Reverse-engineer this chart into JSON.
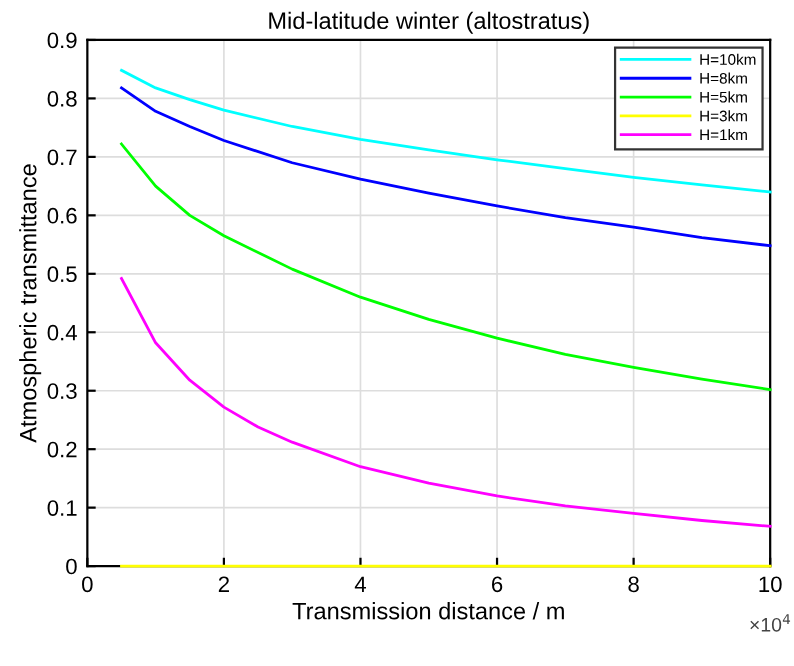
{
  "chart_data": {
    "type": "line",
    "title": "Mid-latitude winter (altostratus)",
    "xlabel": "Transmission distance / m",
    "ylabel": "Atmospheric transmittance",
    "annotations": [
      "×10$^{4}$"
    ],
    "x": [
      0.5,
      1,
      1.5,
      2,
      3,
      4,
      5,
      6,
      7,
      8,
      9,
      10
    ],
    "series": [
      {
        "name": "H=10km",
        "color": "#00ffff",
        "values": [
          0.848,
          0.818,
          0.798,
          0.78,
          0.752,
          0.73,
          0.712,
          0.695,
          0.68,
          0.665,
          0.652,
          0.64
        ]
      },
      {
        "name": "H=8km",
        "color": "#0000ff",
        "values": [
          0.818,
          0.778,
          0.752,
          0.728,
          0.69,
          0.662,
          0.638,
          0.616,
          0.596,
          0.58,
          0.562,
          0.548
        ]
      },
      {
        "name": "H=5km",
        "color": "#00ff00",
        "values": [
          0.722,
          0.65,
          0.6,
          0.565,
          0.508,
          0.46,
          0.422,
          0.39,
          0.362,
          0.34,
          0.32,
          0.302
        ]
      },
      {
        "name": "H=3km",
        "color": "#ffff00",
        "values": [
          0,
          0,
          0,
          0,
          0,
          0,
          0,
          0,
          0,
          0,
          0,
          0
        ]
      },
      {
        "name": "H=1km",
        "color": "#ff00ff",
        "x": [
          0.5,
          1,
          1.5,
          2,
          2.5,
          3,
          4,
          5,
          6,
          7,
          8,
          9,
          10
        ],
        "values": [
          0.492,
          0.382,
          0.318,
          0.272,
          0.238,
          0.212,
          0.17,
          0.142,
          0.12,
          0.103,
          0.09,
          0.078,
          0.068
        ]
      }
    ],
    "xlim": [
      0,
      10
    ],
    "xticks": [
      0,
      2,
      4,
      6,
      8,
      10
    ],
    "ylim": [
      0,
      0.9
    ],
    "yticks": [
      0,
      0.1,
      0.2,
      0.3,
      0.4,
      0.5,
      0.6,
      0.7,
      0.8,
      0.9
    ],
    "grid": true,
    "legend": "top right"
  }
}
